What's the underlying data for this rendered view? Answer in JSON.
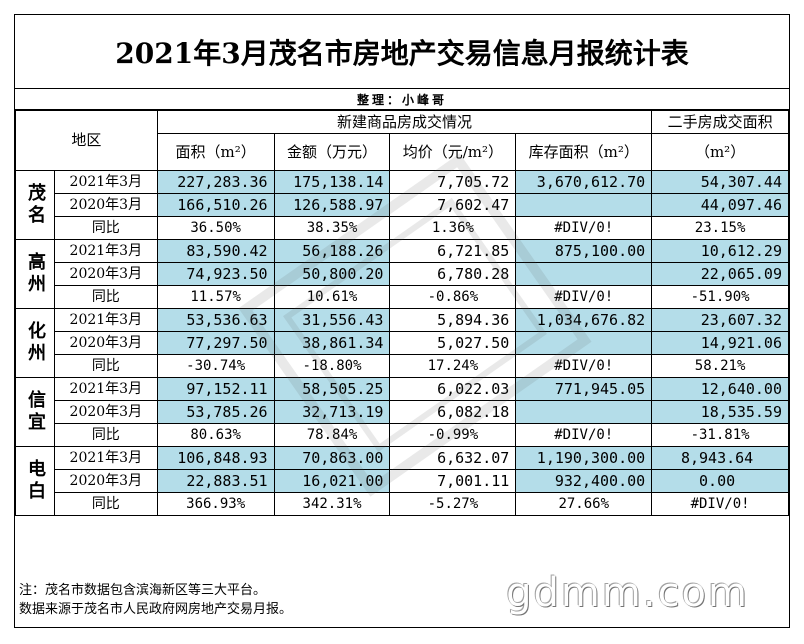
{
  "title": "2021年3月茂名市房地产交易信息月报统计表",
  "editor": "整理：小峰哥",
  "header": {
    "region": "地区",
    "new_group": "新建商品房成交情况",
    "second_group": "二手房成交面积",
    "area": "面积（m²）",
    "amount": "金额（万元）",
    "avg_price": "均价（元/m²）",
    "inventory": "库存面积（m²）",
    "second_unit": "（m²）"
  },
  "rows": {
    "maoming": {
      "name": "茂名",
      "r1": {
        "period": "2021年3月",
        "area": "227,283.36",
        "amount": "175,138.14",
        "avg": "7,705.72",
        "inventory": "3,670,612.70",
        "second": "54,307.44"
      },
      "r2": {
        "period": "2020年3月",
        "area": "166,510.26",
        "amount": "126,588.97",
        "avg": "7,602.47",
        "inventory": "",
        "second": "44,097.46"
      },
      "r3": {
        "period": "同比",
        "area": "36.50%",
        "amount": "38.35%",
        "avg": "1.36%",
        "inventory": "#DIV/0!",
        "second": "23.15%"
      }
    },
    "gaozhou": {
      "name": "高州",
      "r1": {
        "period": "2021年3月",
        "area": "83,590.42",
        "amount": "56,188.26",
        "avg": "6,721.85",
        "inventory": "875,100.00",
        "second": "10,612.29"
      },
      "r2": {
        "period": "2020年3月",
        "area": "74,923.50",
        "amount": "50,800.20",
        "avg": "6,780.28",
        "inventory": "",
        "second": "22,065.09"
      },
      "r3": {
        "period": "同比",
        "area": "11.57%",
        "amount": "10.61%",
        "avg": "-0.86%",
        "inventory": "#DIV/0!",
        "second": "-51.90%"
      }
    },
    "huazhou": {
      "name": "化州",
      "r1": {
        "period": "2021年3月",
        "area": "53,536.63",
        "amount": "31,556.43",
        "avg": "5,894.36",
        "inventory": "1,034,676.82",
        "second": "23,607.32"
      },
      "r2": {
        "period": "2020年3月",
        "area": "77,297.50",
        "amount": "38,861.34",
        "avg": "5,027.50",
        "inventory": "",
        "second": "14,921.06"
      },
      "r3": {
        "period": "同比",
        "area": "-30.74%",
        "amount": "-18.80%",
        "avg": "17.24%",
        "inventory": "#DIV/0!",
        "second": "58.21%"
      }
    },
    "xinyi": {
      "name": "信宜",
      "r1": {
        "period": "2021年3月",
        "area": "97,152.11",
        "amount": "58,505.25",
        "avg": "6,022.03",
        "inventory": "771,945.05",
        "second": "12,640.00"
      },
      "r2": {
        "period": "2020年3月",
        "area": "53,785.26",
        "amount": "32,713.19",
        "avg": "6,082.18",
        "inventory": "",
        "second": "18,535.59"
      },
      "r3": {
        "period": "同比",
        "area": "80.63%",
        "amount": "78.84%",
        "avg": "-0.99%",
        "inventory": "#DIV/0!",
        "second": "-31.81%"
      }
    },
    "dianbai": {
      "name": "电白",
      "r1": {
        "period": "2021年3月",
        "area": "106,848.93",
        "amount": "70,863.00",
        "avg": "6,632.07",
        "inventory": "1,190,300.00",
        "second": "8,943.64"
      },
      "r2": {
        "period": "2020年3月",
        "area": "22,883.51",
        "amount": "16,021.00",
        "avg": "7,001.11",
        "inventory": "932,400.00",
        "second": "0.00"
      },
      "r3": {
        "period": "同比",
        "area": "366.93%",
        "amount": "342.31%",
        "avg": "-5.27%",
        "inventory": "27.66%",
        "second": "#DIV/0!"
      }
    }
  },
  "notes": {
    "line1": "注：茂名市数据包含滨海新区等三大平台。",
    "line2": "数据来源于茂名市人民政府网房地产交易月报。"
  },
  "watermark": "gdmm.com",
  "colors": {
    "highlight": "#b4dde9",
    "border": "#000000"
  }
}
